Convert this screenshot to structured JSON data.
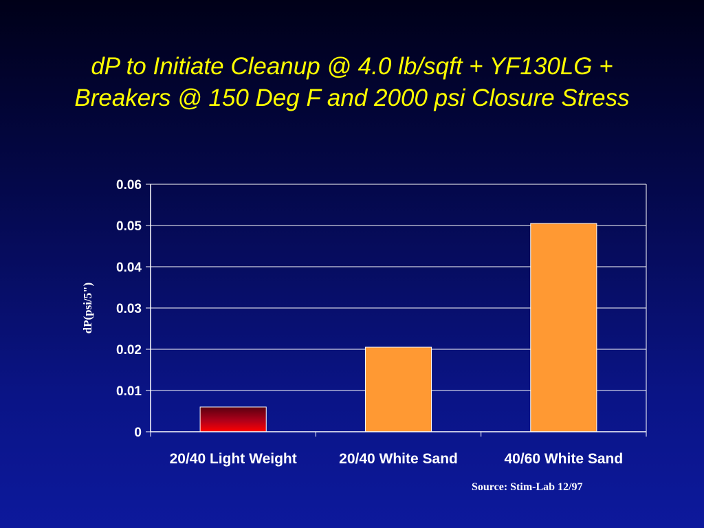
{
  "slide": {
    "title_line1": "dP to Initiate Cleanup @ 4.0 lb/sqft + YF130LG +",
    "title_line2": "Breakers @ 150 Deg F and 2000 psi Closure Stress",
    "source": "Source: Stim-Lab 12/97"
  },
  "colors": {
    "title": "#ffff00",
    "bar_orange": "#ff9933",
    "bar_red_top": "#5a0010",
    "bar_red_bottom": "#ff0000",
    "grid": "#ffffff"
  },
  "chart_data": {
    "type": "bar",
    "title": "dP to Initiate Cleanup @ 4.0 lb/sqft + YF130LG + Breakers @ 150 Deg F and 2000 psi Closure Stress",
    "xlabel": "",
    "ylabel": "dP(psi/5\")",
    "categories": [
      "20/40 Light Weight",
      "20/40 White Sand",
      "40/60 White Sand"
    ],
    "values": [
      0.006,
      0.0205,
      0.0505
    ],
    "ylim": [
      0,
      0.06
    ],
    "yticks": [
      0,
      0.01,
      0.02,
      0.03,
      0.04,
      0.05,
      0.06
    ],
    "ytick_labels": [
      "0",
      "0.01",
      "0.02",
      "0.03",
      "0.04",
      "0.05",
      "0.06"
    ],
    "bar_styles": [
      "red-gradient",
      "orange",
      "orange"
    ],
    "grid": true,
    "legend": "none"
  }
}
